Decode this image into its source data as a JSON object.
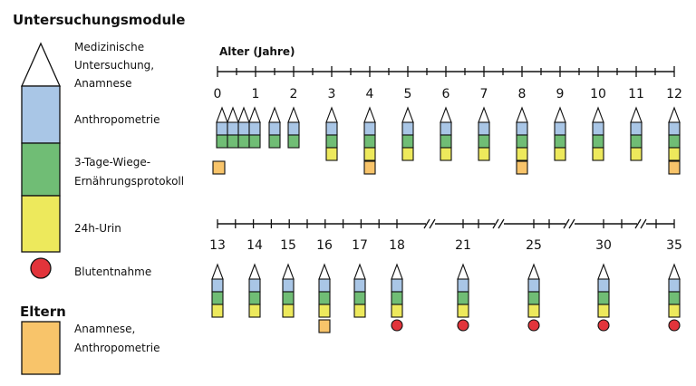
{
  "headings": {
    "modules": "Untersuchungsmodule",
    "parents": "Eltern"
  },
  "legend": {
    "medical": [
      "Medizinische",
      "Untersuchung,",
      "Anamnese"
    ],
    "anthro": [
      "Anthropometrie"
    ],
    "diet": [
      "3-Tage-Wiege-",
      "Ernährungsprotokoll"
    ],
    "urine": [
      "24h-Urin"
    ],
    "blood": [
      "Blutentnahme"
    ],
    "parents": [
      "Anamnese,",
      "Anthropometrie"
    ]
  },
  "colors": {
    "medical": "#ffffff",
    "anthro": "#a9c6e6",
    "diet": "#70bd75",
    "urine": "#ede95c",
    "blood": "#e2343b",
    "parents": "#f8c46a",
    "line": "#111111"
  },
  "axis_title": "Alter (Jahre)",
  "timeline1": {
    "ticks": [
      "0",
      "1",
      "2",
      "3",
      "4",
      "5",
      "6",
      "7",
      "8",
      "9",
      "10",
      "11",
      "12"
    ],
    "visits": [
      {
        "age": "0",
        "stacks": 4,
        "urine": false,
        "parents": true
      },
      {
        "age": "1.5",
        "stacks": 1,
        "urine": false,
        "parents": false
      },
      {
        "age": "2",
        "stacks": 1,
        "urine": false,
        "parents": false
      },
      {
        "age": "3",
        "stacks": 1,
        "urine": true,
        "parents": false
      },
      {
        "age": "4",
        "stacks": 1,
        "urine": true,
        "parents": true
      },
      {
        "age": "5",
        "stacks": 1,
        "urine": true,
        "parents": false
      },
      {
        "age": "6",
        "stacks": 1,
        "urine": true,
        "parents": false
      },
      {
        "age": "7",
        "stacks": 1,
        "urine": true,
        "parents": false
      },
      {
        "age": "8",
        "stacks": 1,
        "urine": true,
        "parents": true
      },
      {
        "age": "9",
        "stacks": 1,
        "urine": true,
        "parents": false
      },
      {
        "age": "10",
        "stacks": 1,
        "urine": true,
        "parents": false
      },
      {
        "age": "11",
        "stacks": 1,
        "urine": true,
        "parents": false
      },
      {
        "age": "12",
        "stacks": 1,
        "urine": true,
        "parents": true
      }
    ]
  },
  "timeline2": {
    "ticks": [
      "13",
      "14",
      "15",
      "16",
      "17",
      "18",
      "21",
      "25",
      "30",
      "35"
    ],
    "visits": [
      {
        "age": "13",
        "parents": false,
        "blood": false
      },
      {
        "age": "14",
        "parents": false,
        "blood": false
      },
      {
        "age": "15",
        "parents": false,
        "blood": false
      },
      {
        "age": "16",
        "parents": true,
        "blood": false
      },
      {
        "age": "17",
        "parents": false,
        "blood": false
      },
      {
        "age": "18",
        "parents": false,
        "blood": true
      },
      {
        "age": "21",
        "parents": false,
        "blood": true
      },
      {
        "age": "25",
        "parents": false,
        "blood": true
      },
      {
        "age": "30",
        "parents": false,
        "blood": true
      },
      {
        "age": "35",
        "parents": false,
        "blood": true
      }
    ]
  }
}
